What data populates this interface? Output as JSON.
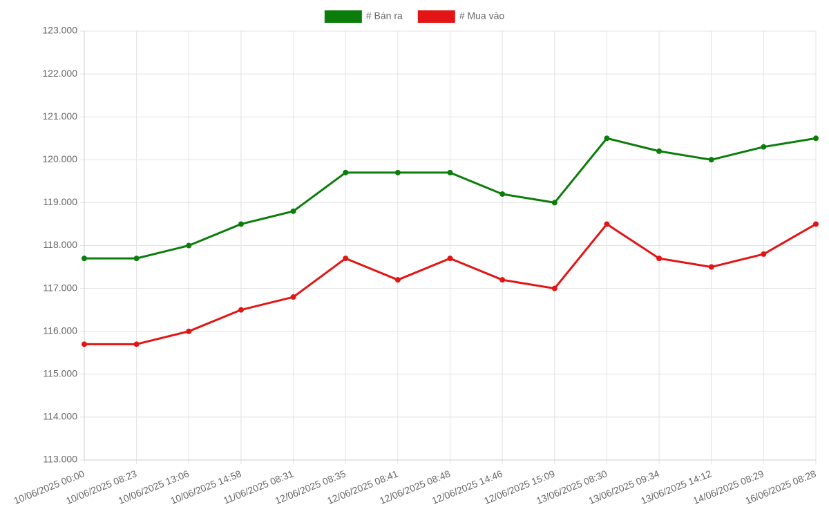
{
  "chart_data": {
    "type": "line",
    "legend": "top",
    "grid": true,
    "categories": [
      "10/06/2025 00:00",
      "10/06/2025 08:23",
      "10/06/2025 13:06",
      "10/06/2025 14:58",
      "11/06/2025 08:31",
      "12/06/2025 08:35",
      "12/06/2025 08:41",
      "12/06/2025 08:48",
      "12/06/2025 14:46",
      "12/06/2025 15:09",
      "13/06/2025 08:30",
      "13/06/2025 09:34",
      "13/06/2025 14:12",
      "14/06/2025 08:29",
      "16/06/2025 08:28"
    ],
    "series": [
      {
        "name": "# Bán ra",
        "color": "#0b7d0b",
        "values": [
          117700,
          117700,
          118000,
          118500,
          118800,
          119700,
          119700,
          119700,
          119200,
          119000,
          120500,
          120200,
          120000,
          120300,
          120500
        ]
      },
      {
        "name": "# Mua vào",
        "color": "#e31414",
        "values": [
          115700,
          115700,
          116000,
          116500,
          116800,
          117700,
          117200,
          117700,
          117200,
          117000,
          118500,
          117700,
          117500,
          117800,
          118500
        ]
      }
    ],
    "ylim": [
      113000,
      123000
    ],
    "yticks": [
      {
        "value": 113000,
        "label": "113.000"
      },
      {
        "value": 114000,
        "label": "114.000"
      },
      {
        "value": 115000,
        "label": "115.000"
      },
      {
        "value": 116000,
        "label": "116.000"
      },
      {
        "value": 117000,
        "label": "117.000"
      },
      {
        "value": 118000,
        "label": "118.000"
      },
      {
        "value": 119000,
        "label": "119.000"
      },
      {
        "value": 120000,
        "label": "120.000"
      },
      {
        "value": 121000,
        "label": "121.000"
      },
      {
        "value": 122000,
        "label": "122.000"
      },
      {
        "value": 123000,
        "label": "123.000"
      }
    ]
  }
}
